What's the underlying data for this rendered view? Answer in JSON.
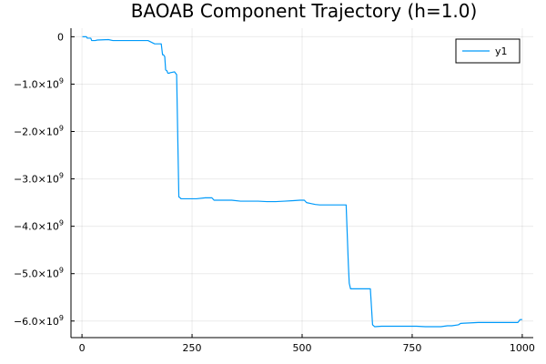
{
  "chart_data": {
    "type": "line",
    "title": "BAOAB Component Trajectory (h=1.0)",
    "xlabel": "",
    "ylabel": "",
    "xlim": [
      -25,
      1025
    ],
    "ylim": [
      -6350000000.0,
      180000000.0
    ],
    "grid": true,
    "legend_position": "top-right",
    "x_ticks": [
      {
        "value": 0,
        "label": "0"
      },
      {
        "value": 250,
        "label": "250"
      },
      {
        "value": 500,
        "label": "500"
      },
      {
        "value": 750,
        "label": "750"
      },
      {
        "value": 1000,
        "label": "1000"
      }
    ],
    "y_ticks": [
      {
        "value": 0,
        "label": "0"
      },
      {
        "value": -1000000000.0,
        "label": "−1.0×10",
        "exp": "9"
      },
      {
        "value": -2000000000.0,
        "label": "−2.0×10",
        "exp": "9"
      },
      {
        "value": -3000000000.0,
        "label": "−3.0×10",
        "exp": "9"
      },
      {
        "value": -4000000000.0,
        "label": "−4.0×10",
        "exp": "9"
      },
      {
        "value": -5000000000.0,
        "label": "−5.0×10",
        "exp": "9"
      },
      {
        "value": -6000000000.0,
        "label": "−6.0×10",
        "exp": "9"
      }
    ],
    "series": [
      {
        "name": "y1",
        "color": "#009AFA",
        "x": [
          1,
          10,
          12,
          20,
          22,
          30,
          35,
          60,
          70,
          100,
          120,
          150,
          165,
          175,
          180,
          183,
          185,
          188,
          190,
          193,
          195,
          198,
          200,
          210,
          215,
          220,
          223,
          225,
          228,
          240,
          260,
          280,
          295,
          300,
          320,
          340,
          360,
          380,
          400,
          420,
          440,
          460,
          480,
          495,
          505,
          510,
          520,
          530,
          540,
          560,
          580,
          600,
          605,
          607,
          610,
          615,
          620,
          640,
          655,
          660,
          665,
          680,
          700,
          720,
          740,
          760,
          780,
          800,
          815,
          830,
          840,
          855,
          860,
          880,
          900,
          920,
          940,
          960,
          980,
          990,
          995,
          1000
        ],
        "values": [
          0.0,
          0.0,
          -30000000.0,
          -30000000.0,
          -80000000.0,
          -80000000.0,
          -70000000.0,
          -60000000.0,
          -80000000.0,
          -80000000.0,
          -80000000.0,
          -80000000.0,
          -150000000.0,
          -150000000.0,
          -150000000.0,
          -380000000.0,
          -380000000.0,
          -420000000.0,
          -700000000.0,
          -720000000.0,
          -770000000.0,
          -770000000.0,
          -760000000.0,
          -740000000.0,
          -800000000.0,
          -3380000000.0,
          -3400000000.0,
          -3420000000.0,
          -3420000000.0,
          -3420000000.0,
          -3420000000.0,
          -3400000000.0,
          -3400000000.0,
          -3450000000.0,
          -3450000000.0,
          -3450000000.0,
          -3470000000.0,
          -3470000000.0,
          -3470000000.0,
          -3480000000.0,
          -3480000000.0,
          -3470000000.0,
          -3460000000.0,
          -3450000000.0,
          -3450000000.0,
          -3500000000.0,
          -3520000000.0,
          -3540000000.0,
          -3550000000.0,
          -3550000000.0,
          -3550000000.0,
          -3550000000.0,
          -4800000000.0,
          -5200000000.0,
          -5320000000.0,
          -5320000000.0,
          -5320000000.0,
          -5320000000.0,
          -5320000000.0,
          -6080000000.0,
          -6120000000.0,
          -6110000000.0,
          -6110000000.0,
          -6110000000.0,
          -6110000000.0,
          -6110000000.0,
          -6120000000.0,
          -6120000000.0,
          -6120000000.0,
          -6100000000.0,
          -6100000000.0,
          -6080000000.0,
          -6050000000.0,
          -6040000000.0,
          -6030000000.0,
          -6030000000.0,
          -6030000000.0,
          -6030000000.0,
          -6030000000.0,
          -6030000000.0,
          -5970000000.0,
          -5970000000.0
        ]
      }
    ]
  }
}
